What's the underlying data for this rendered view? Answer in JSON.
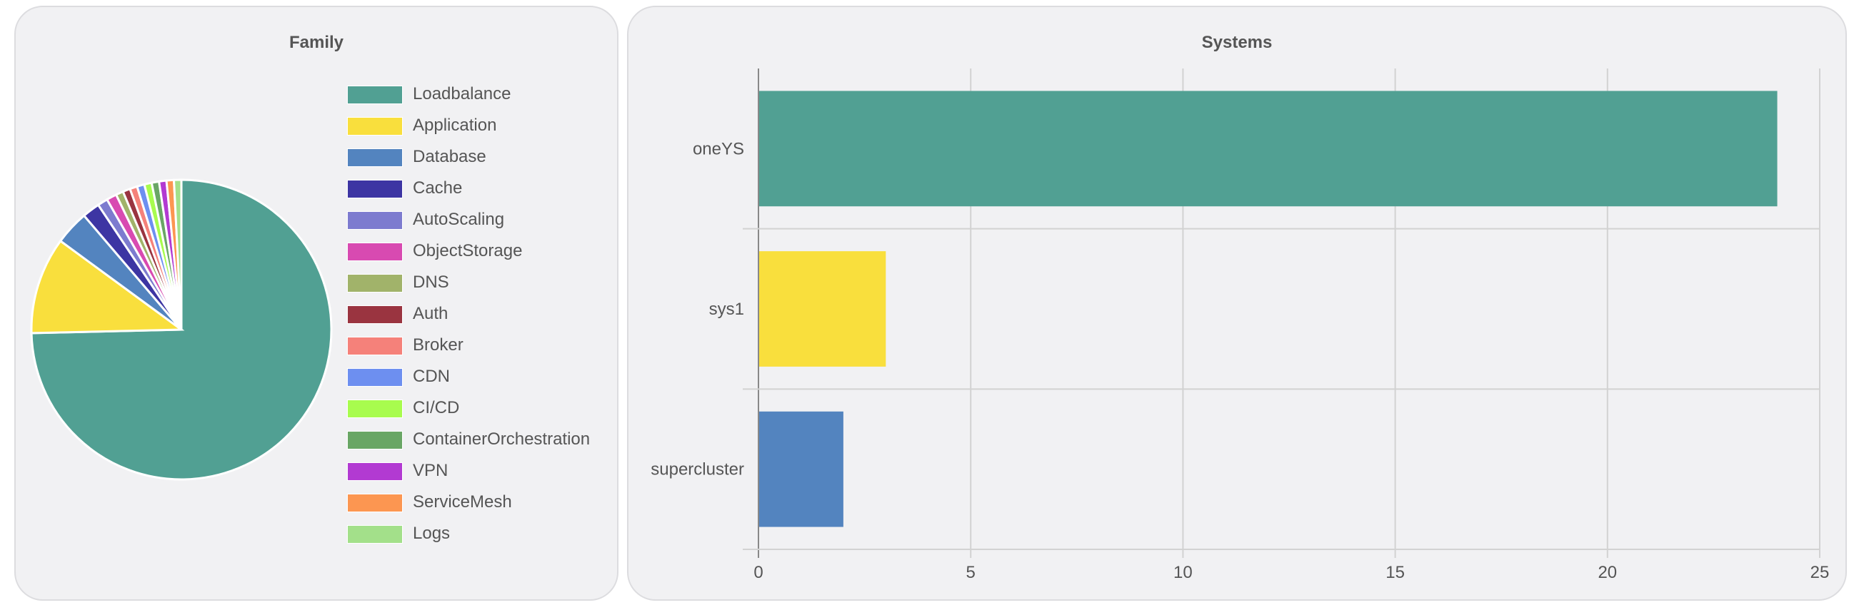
{
  "chart_data": [
    {
      "type": "pie",
      "title": "Family",
      "legend_position": "right",
      "slices": [
        {
          "label": "Loadbalance",
          "value": 75.0,
          "color": "#51a093"
        },
        {
          "label": "Application",
          "value": 10.5,
          "color": "#f9df3d"
        },
        {
          "label": "Database",
          "value": 3.7,
          "color": "#5384bf"
        },
        {
          "label": "Cache",
          "value": 1.9,
          "color": "#3d35a3"
        },
        {
          "label": "AutoScaling",
          "value": 1.1,
          "color": "#7d7bcf"
        },
        {
          "label": "ObjectStorage",
          "value": 1.1,
          "color": "#d84ab1"
        },
        {
          "label": "DNS",
          "value": 0.8,
          "color": "#a1b36a"
        },
        {
          "label": "Auth",
          "value": 0.8,
          "color": "#9a3440"
        },
        {
          "label": "Broker",
          "value": 0.8,
          "color": "#f5817a"
        },
        {
          "label": "CDN",
          "value": 0.8,
          "color": "#6d8ff0"
        },
        {
          "label": "CI/CD",
          "value": 0.8,
          "color": "#a8fc4e"
        },
        {
          "label": "ContainerOrchestration",
          "value": 0.8,
          "color": "#69a665"
        },
        {
          "label": "VPN",
          "value": 0.8,
          "color": "#b23ad2"
        },
        {
          "label": "ServiceMesh",
          "value": 0.8,
          "color": "#fc9651"
        },
        {
          "label": "Logs",
          "value": 0.8,
          "color": "#a3e08a"
        }
      ]
    },
    {
      "type": "bar",
      "orientation": "horizontal",
      "title": "Systems",
      "categories": [
        "oneYS",
        "sys1",
        "supercluster"
      ],
      "values": [
        24,
        3,
        2
      ],
      "colors": [
        "#51a093",
        "#f9df3d",
        "#5384bf"
      ],
      "xlim": [
        0,
        25
      ],
      "xticks": [
        0,
        5,
        10,
        15,
        20,
        25
      ],
      "grid": true
    }
  ]
}
